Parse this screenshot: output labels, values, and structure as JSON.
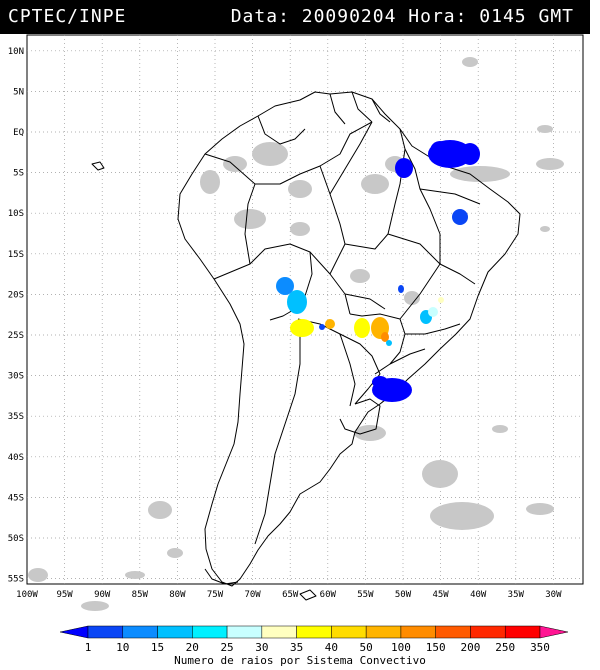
{
  "header": {
    "org": "CPTEC/INPE",
    "stamp": "Data: 20090204 Hora: 0145 GMT"
  },
  "map": {
    "lat_labels": [
      "10N",
      "5N",
      "EQ",
      "5S",
      "10S",
      "15S",
      "20S",
      "25S",
      "30S",
      "35S",
      "40S",
      "45S",
      "50S",
      "55S"
    ],
    "lon_labels": [
      "100W",
      "95W",
      "90W",
      "85W",
      "80W",
      "75W",
      "70W",
      "65W",
      "60W",
      "55W",
      "50W",
      "45W",
      "40W",
      "35W",
      "30W"
    ],
    "colors": {
      "land_border": "#000000",
      "cloud_gray": "#c8c8c8",
      "grid": "#999999"
    }
  },
  "colorbar": {
    "labels": [
      "1",
      "10",
      "15",
      "20",
      "25",
      "30",
      "35",
      "40",
      "50",
      "100",
      "150",
      "200",
      "250",
      "350"
    ],
    "colors": [
      "#0000ff",
      "#0a46f5",
      "#0c8cff",
      "#00c0ff",
      "#00f0ff",
      "#c8ffff",
      "#ffffc0",
      "#ffff00",
      "#ffdc00",
      "#ffb400",
      "#ff8c00",
      "#ff5a00",
      "#ff2800",
      "#ff0000",
      "#ff1493"
    ],
    "title": "Numero de raios por Sistema Convectivo"
  }
}
